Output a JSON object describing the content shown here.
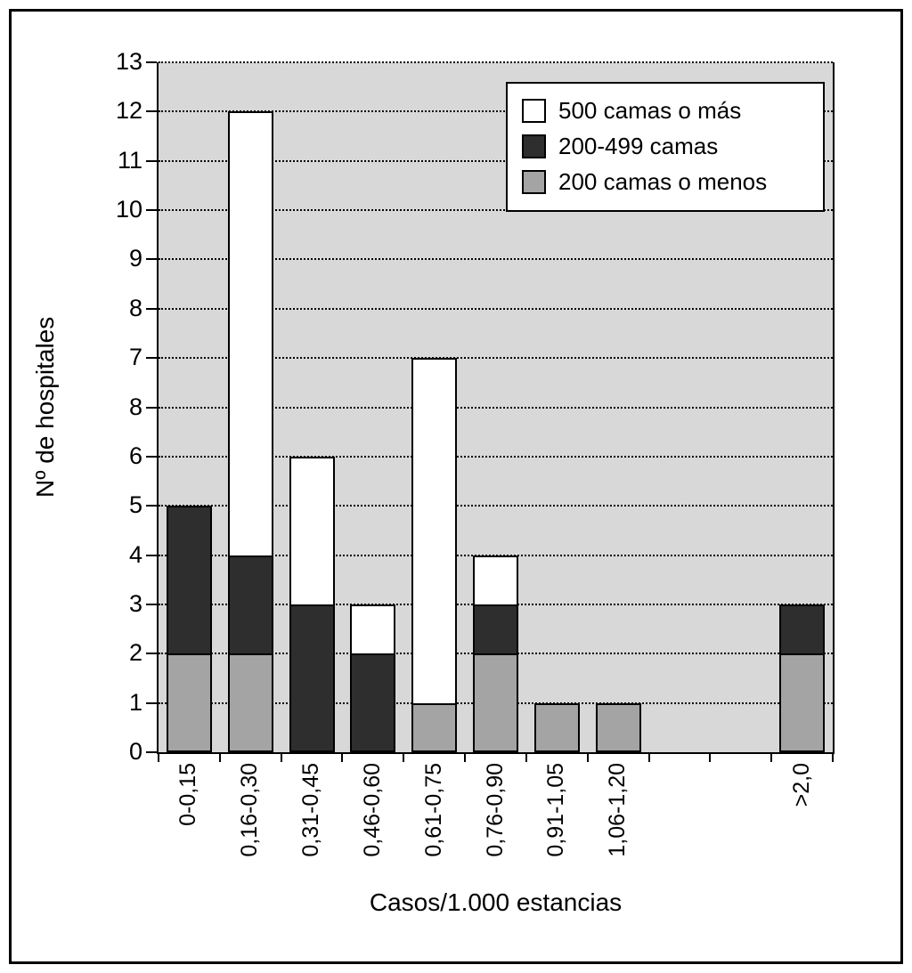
{
  "figure": {
    "y_axis_title": "Nº de hospitales",
    "x_axis_title": "Casos/1.000 estancias",
    "legend": [
      {
        "label": "500 camas o más",
        "color": "#ffffff"
      },
      {
        "label": "200-499 camas",
        "color": "#2e2e2e"
      },
      {
        "label": "200 camas o menos",
        "color": "#a4a4a4"
      }
    ]
  },
  "chart_data": {
    "type": "bar",
    "stacked": true,
    "title": "",
    "xlabel": "Casos/1.000 estancias",
    "ylabel": "Nº de hospitales",
    "ylim": [
      0,
      13
    ],
    "grid": "horizontal dotted black lines on gray plot background",
    "legend_position": "top-right inside plot",
    "plot_background": "#d8d8d8",
    "y_tick_labels_top_to_bottom": [
      "13",
      "12",
      "11",
      "10",
      "9",
      "8",
      "7",
      "8",
      "6",
      "5",
      "4",
      "3",
      "2",
      "1",
      "0"
    ],
    "categories": [
      "0-0,15",
      "0,16-0,30",
      "0,31-0,45",
      "0,46-0,60",
      "0,61-0,75",
      "0,76-0,90",
      "0,91-1,05",
      "1,06-1,20",
      "",
      "",
      ">2,0"
    ],
    "stack_order_bottom_to_top": [
      "200 camas o menos",
      "200-499 camas",
      "500 camas o más"
    ],
    "series": [
      {
        "name": "200 camas o menos",
        "color": "#a4a4a4",
        "values": [
          2,
          2,
          0,
          0,
          1,
          2,
          1,
          1,
          0,
          0,
          2
        ]
      },
      {
        "name": "200-499 camas",
        "color": "#2e2e2e",
        "values": [
          3,
          2,
          3,
          2,
          0,
          1,
          0,
          0,
          0,
          0,
          1
        ]
      },
      {
        "name": "500 camas o más",
        "color": "#ffffff",
        "values": [
          0,
          8,
          3,
          1,
          6,
          1,
          0,
          0,
          0,
          0,
          0
        ]
      }
    ],
    "totals": [
      5,
      12,
      6,
      3,
      7,
      4,
      1,
      1,
      0,
      0,
      3
    ]
  }
}
